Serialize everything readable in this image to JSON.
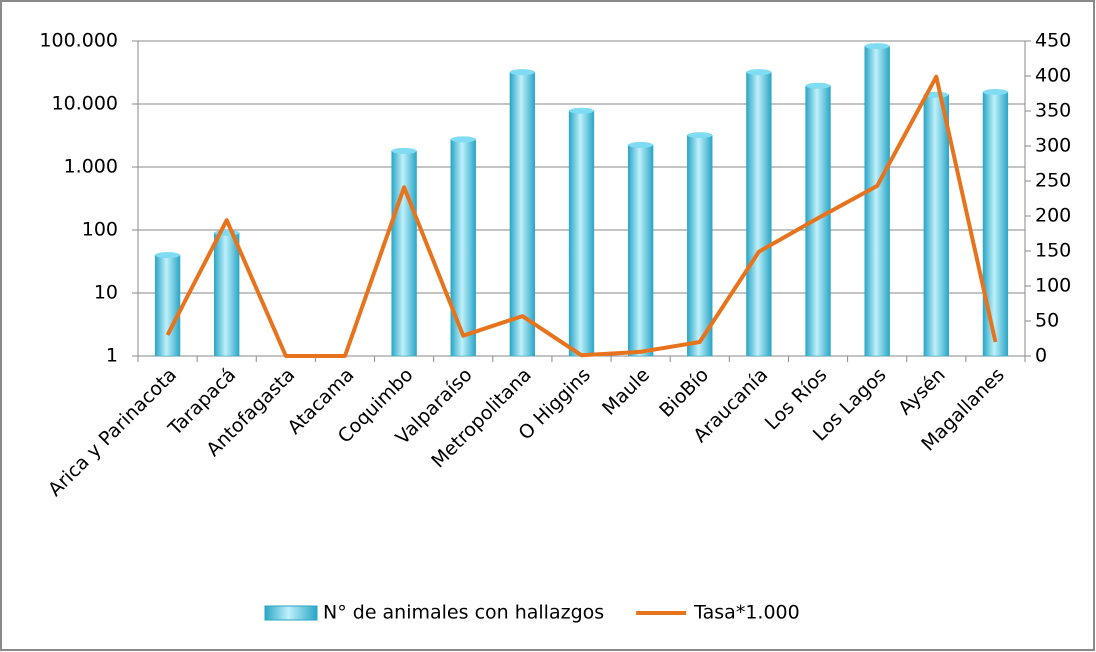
{
  "chart_data": {
    "type": "combo",
    "categories": [
      "Arica y Parinacota",
      "Tarapacá",
      "Antofagasta",
      "Atacama",
      "Coquimbo",
      "Valparaíso",
      "Metropolitana",
      "O Higgins",
      "Maule",
      "BioBío",
      "Araucanía",
      "Los Ríos",
      "Los Lagos",
      "Aysén",
      "Magallanes"
    ],
    "series": [
      {
        "name": "N° de animales con hallazgos",
        "type": "bar",
        "color": "#2aa6c6",
        "values": [
          40,
          90,
          null,
          null,
          1800,
          2750,
          32000,
          7800,
          2240,
          3200,
          32000,
          19500,
          83000,
          14000,
          15500
        ]
      },
      {
        "name": "Tasa*1.000",
        "type": "line",
        "axis": "y2",
        "color": "#e8731d",
        "values": [
          30,
          194,
          0,
          0,
          241,
          29,
          57,
          1,
          6,
          20,
          149,
          197,
          243,
          399,
          20
        ]
      }
    ],
    "ylim": [
      1,
      100000
    ],
    "ylog": true,
    "yticks": [
      1,
      10,
      100,
      {
        "value": 1000,
        "label": "1.000"
      },
      {
        "value": 10000,
        "label": "10.000"
      },
      {
        "value": 100000,
        "label": "100.000"
      }
    ],
    "y2lim": [
      0,
      450
    ],
    "y2ticks": [
      0,
      50,
      100,
      150,
      200,
      250,
      300,
      350,
      400,
      450
    ],
    "grid": true,
    "legend": "bottom"
  }
}
